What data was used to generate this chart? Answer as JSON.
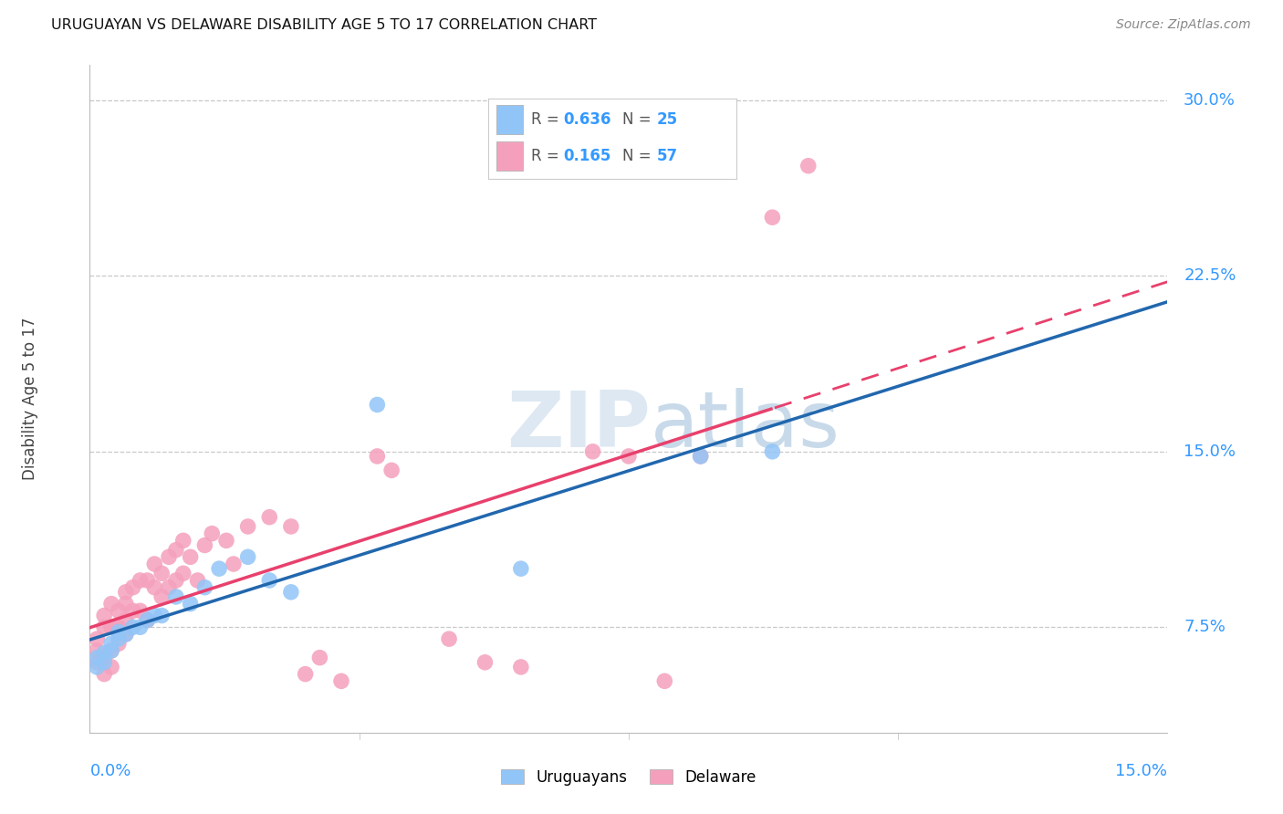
{
  "title": "URUGUAYAN VS DELAWARE DISABILITY AGE 5 TO 17 CORRELATION CHART",
  "source": "Source: ZipAtlas.com",
  "ylabel": "Disability Age 5 to 17",
  "xlim": [
    0.0,
    0.15
  ],
  "ylim": [
    0.03,
    0.315
  ],
  "ytick_vals": [
    0.075,
    0.15,
    0.225,
    0.3
  ],
  "ytick_labels": [
    "7.5%",
    "15.0%",
    "22.5%",
    "30.0%"
  ],
  "uruguayan_color": "#92C5F7",
  "delaware_color": "#F4A0BC",
  "uruguayan_line_color": "#2167AE",
  "delaware_line_color": "#E8406C",
  "grid_color": "#c8c8c8",
  "legend_R_uru": "0.636",
  "legend_N_uru": "25",
  "legend_R_del": "0.165",
  "legend_N_del": "57",
  "uru_x": [
    0.001,
    0.001,
    0.002,
    0.002,
    0.003,
    0.003,
    0.004,
    0.004,
    0.005,
    0.006,
    0.007,
    0.008,
    0.009,
    0.01,
    0.012,
    0.014,
    0.016,
    0.018,
    0.022,
    0.025,
    0.028,
    0.04,
    0.06,
    0.085,
    0.095
  ],
  "uru_y": [
    0.058,
    0.062,
    0.06,
    0.064,
    0.065,
    0.068,
    0.07,
    0.073,
    0.072,
    0.075,
    0.075,
    0.078,
    0.08,
    0.08,
    0.088,
    0.085,
    0.092,
    0.1,
    0.105,
    0.095,
    0.09,
    0.17,
    0.1,
    0.148,
    0.15
  ],
  "del_x": [
    0.001,
    0.001,
    0.001,
    0.002,
    0.002,
    0.002,
    0.002,
    0.003,
    0.003,
    0.003,
    0.003,
    0.004,
    0.004,
    0.004,
    0.005,
    0.005,
    0.005,
    0.005,
    0.006,
    0.006,
    0.007,
    0.007,
    0.008,
    0.008,
    0.009,
    0.009,
    0.01,
    0.01,
    0.011,
    0.011,
    0.012,
    0.012,
    0.013,
    0.013,
    0.014,
    0.015,
    0.016,
    0.017,
    0.019,
    0.02,
    0.022,
    0.025,
    0.028,
    0.03,
    0.032,
    0.035,
    0.04,
    0.042,
    0.05,
    0.055,
    0.06,
    0.07,
    0.075,
    0.08,
    0.085,
    0.095,
    0.1
  ],
  "del_y": [
    0.06,
    0.065,
    0.07,
    0.055,
    0.062,
    0.075,
    0.08,
    0.058,
    0.065,
    0.075,
    0.085,
    0.068,
    0.075,
    0.082,
    0.072,
    0.078,
    0.085,
    0.09,
    0.082,
    0.092,
    0.082,
    0.095,
    0.078,
    0.095,
    0.092,
    0.102,
    0.088,
    0.098,
    0.092,
    0.105,
    0.095,
    0.108,
    0.098,
    0.112,
    0.105,
    0.095,
    0.11,
    0.115,
    0.112,
    0.102,
    0.118,
    0.122,
    0.118,
    0.055,
    0.062,
    0.052,
    0.148,
    0.142,
    0.07,
    0.06,
    0.058,
    0.15,
    0.148,
    0.052,
    0.148,
    0.25,
    0.272
  ],
  "del_solid_max": 0.095,
  "watermark_text": "ZIPatlas",
  "watermark_color": "#e0e8f0"
}
